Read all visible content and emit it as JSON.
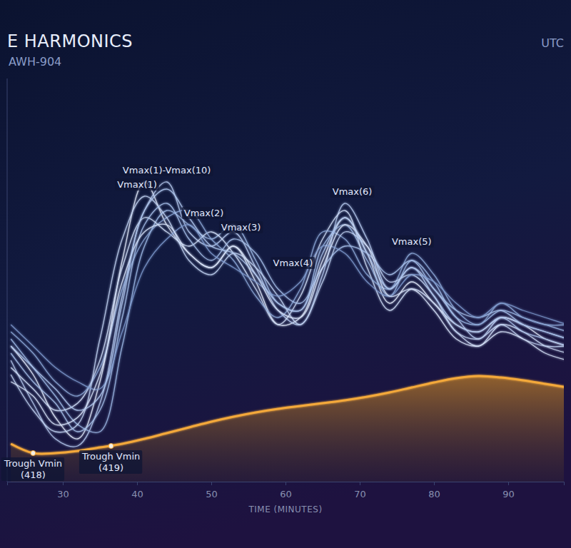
{
  "chart_data": {
    "type": "line",
    "title": "E HARMONICS",
    "subtitle": "AWH-904",
    "caption": "UTC",
    "xlabel": "TIME (MINUTES)",
    "x": [
      23,
      26,
      29,
      32,
      35,
      38,
      41,
      44,
      47,
      50,
      53,
      56,
      59,
      62,
      65,
      68,
      71,
      74,
      77,
      80,
      83,
      86,
      89,
      92,
      95,
      98
    ],
    "xlim": [
      22.5,
      97.5
    ],
    "xticks": [
      30,
      40,
      50,
      60,
      70,
      80,
      90
    ],
    "ylim": [
      414,
      470.5
    ],
    "tick_labels": "x",
    "grid": false,
    "series": [
      {
        "type": "area",
        "color": "#f4a93a",
        "values": [
          419.3,
          418,
          418,
          418.3,
          418.8,
          419.3,
          420,
          420.8,
          421.6,
          422.4,
          423.1,
          423.7,
          424.2,
          424.6,
          425,
          425.4,
          425.9,
          426.5,
          427.2,
          427.9,
          428.5,
          428.8,
          428.6,
          428.2,
          427.7,
          427.2
        ]
      },
      {
        "type": "line",
        "color": "#e6eeff",
        "values": [
          433,
          429,
          423,
          420,
          428,
          445,
          456,
          450,
          446,
          444,
          447,
          442,
          436,
          437,
          445,
          451,
          446,
          439,
          442,
          439,
          436,
          435,
          437,
          436,
          434,
          433
        ]
      },
      {
        "type": "line",
        "color": "#b8cdf2",
        "values": [
          431,
          425,
          420,
          419,
          425,
          440,
          452,
          456,
          449,
          447,
          449,
          444,
          438,
          436,
          443,
          453,
          448,
          441,
          444,
          441,
          437,
          434,
          437,
          436,
          435,
          434
        ]
      },
      {
        "type": "line",
        "color": "#9fbbe8",
        "values": [
          434,
          430,
          426,
          422,
          421,
          433,
          447,
          452,
          450,
          448,
          450,
          445,
          439,
          438,
          447,
          450,
          445,
          440,
          445,
          442,
          437,
          436,
          438,
          437,
          436,
          435
        ]
      },
      {
        "type": "line",
        "color": "#d4e2fb",
        "values": [
          430,
          427,
          424,
          425,
          431,
          444,
          451,
          449,
          447,
          449,
          446,
          441,
          436,
          440,
          448,
          452,
          444,
          438,
          441,
          439,
          435,
          433,
          436,
          435,
          433,
          432
        ]
      },
      {
        "type": "line",
        "color": "#8eaadb",
        "values": [
          435,
          432,
          428,
          426,
          430,
          441,
          448,
          451,
          452,
          448,
          445,
          440,
          437,
          441,
          449,
          448,
          443,
          441,
          446,
          443,
          438,
          436,
          439,
          437,
          436,
          436
        ]
      },
      {
        "type": "line",
        "color": "#c3d5f5",
        "values": [
          429,
          424,
          421,
          422,
          434,
          448,
          454,
          451,
          445,
          443,
          446,
          444,
          440,
          436,
          442,
          449,
          447,
          442,
          443,
          440,
          435,
          434,
          436,
          434,
          433,
          433
        ]
      },
      {
        "type": "line",
        "color": "#a8c2ec",
        "values": [
          432,
          428,
          425,
          421,
          424,
          437,
          450,
          453,
          448,
          445,
          448,
          446,
          441,
          439,
          444,
          447,
          446,
          443,
          445,
          441,
          438,
          437,
          438,
          436,
          435,
          434
        ]
      },
      {
        "type": "line",
        "color": "#7f9bd0",
        "values": [
          436,
          433,
          430,
          428,
          427,
          435,
          444,
          448,
          450,
          446,
          444,
          442,
          440,
          442,
          447,
          446,
          442,
          440,
          443,
          442,
          439,
          437,
          439,
          438,
          437,
          436
        ]
      },
      {
        "type": "line",
        "color": "#dbe6fd",
        "values": [
          428,
          426,
          422,
          423,
          429,
          442,
          449,
          450,
          446,
          444,
          447,
          443,
          438,
          437,
          444,
          450,
          447,
          440,
          441,
          438,
          434,
          433,
          435,
          434,
          432,
          431
        ]
      },
      {
        "type": "line",
        "color": "#b0c8f0",
        "values": [
          433,
          430,
          427,
          424,
          426,
          439,
          452,
          455,
          451,
          447,
          446,
          443,
          439,
          438,
          446,
          451,
          446,
          441,
          444,
          440,
          436,
          435,
          437,
          435,
          434,
          433
        ]
      }
    ],
    "annotations": [
      {
        "text": "Vmax(1)",
        "x": 40,
        "y": 454
      },
      {
        "text": "Vmax(1)-Vmax(10)",
        "x": 44,
        "y": 456
      },
      {
        "text": "Vmax(2)",
        "x": 49,
        "y": 450
      },
      {
        "text": "Vmax(3)",
        "x": 54,
        "y": 448
      },
      {
        "text": "Vmax(4)",
        "x": 61,
        "y": 443
      },
      {
        "text": "Vmax(6)",
        "x": 69,
        "y": 453
      },
      {
        "text": "Vmax(5)",
        "x": 77,
        "y": 446
      },
      {
        "text": "Trough Vmin (418)",
        "x": 26,
        "y": 418
      },
      {
        "text": "Trough Vmin (419)",
        "x": 36.5,
        "y": 419
      }
    ]
  }
}
